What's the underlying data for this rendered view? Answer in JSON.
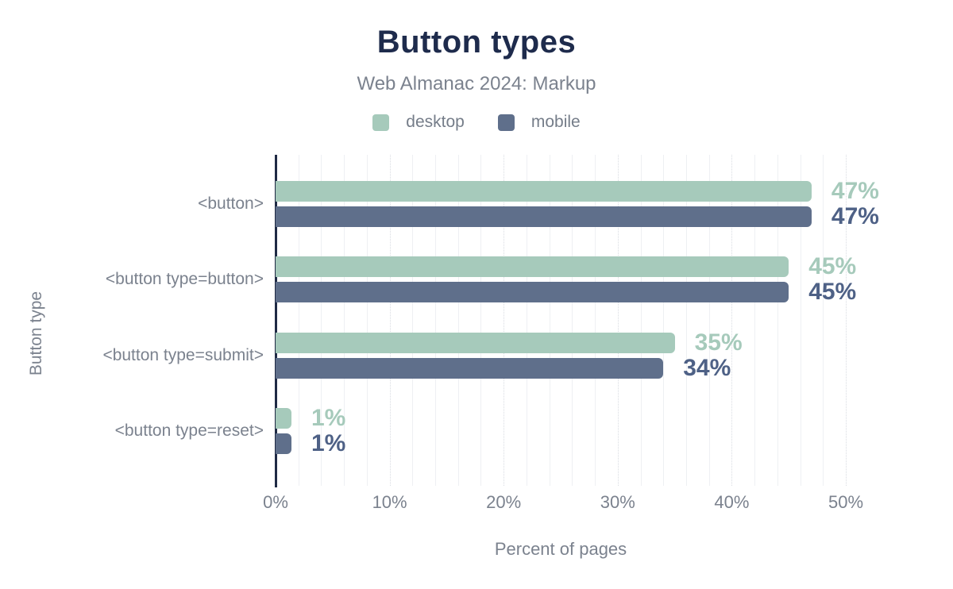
{
  "title": "Button types",
  "subtitle": "Web Almanac 2024: Markup",
  "xlabel": "Percent of pages",
  "ylabel": "Button type",
  "legend": [
    {
      "label": "desktop",
      "color": "#a6cabb"
    },
    {
      "label": "mobile",
      "color": "#5f6f8b"
    }
  ],
  "colors": {
    "desktop": "#a6cabb",
    "mobile": "#5f6f8b",
    "desktop_label": "#a6cabb",
    "mobile_label": "#4e6186",
    "title": "#1e2b4c",
    "axis": "#1f2a44",
    "muted_text": "#7b828e",
    "grid_minor": "#eef0f3",
    "grid_major": "#d9dce2"
  },
  "chart_data": {
    "type": "bar",
    "orientation": "horizontal",
    "title": "Button types",
    "subtitle": "Web Almanac 2024: Markup",
    "xlabel": "Percent of pages",
    "ylabel": "Button type",
    "categories": [
      "<button>",
      "<button type=button>",
      "<button type=submit>",
      "<button type=reset>"
    ],
    "series": [
      {
        "name": "desktop",
        "color": "#a6cabb",
        "values": [
          47,
          45,
          35,
          1
        ],
        "labels": [
          "47%",
          "45%",
          "35%",
          "1%"
        ]
      },
      {
        "name": "mobile",
        "color": "#5f6f8b",
        "values": [
          47,
          45,
          34,
          1
        ],
        "labels": [
          "47%",
          "45%",
          "34%",
          "1%"
        ]
      }
    ],
    "xlim": [
      0,
      50
    ],
    "x_ticks": [
      {
        "value": 0,
        "label": "0%"
      },
      {
        "value": 10,
        "label": "10%"
      },
      {
        "value": 20,
        "label": "20%"
      },
      {
        "value": 30,
        "label": "30%"
      },
      {
        "value": 40,
        "label": "40%"
      },
      {
        "value": 50,
        "label": "50%"
      }
    ],
    "grid": {
      "minor_step": 2,
      "major_step": 10,
      "vertical_gridlines": true
    },
    "legend_position": "top"
  }
}
